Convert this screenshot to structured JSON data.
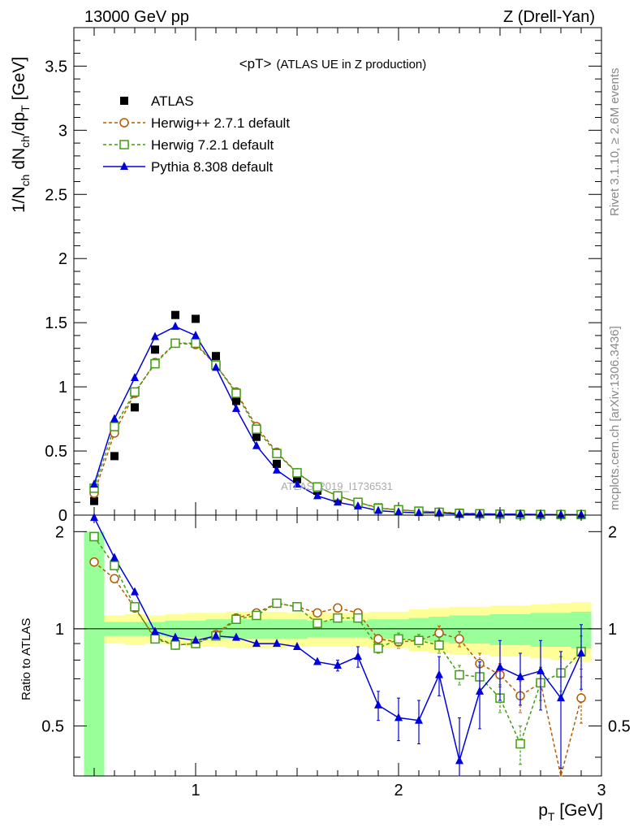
{
  "header": {
    "left": "13000 GeV pp",
    "right": "Z (Drell-Yan)"
  },
  "side_labels": {
    "upper": "Rivet 3.1.10, ≥ 2.6M events",
    "lower": "mcplots.cern.ch [arXiv:1306.3436]"
  },
  "watermark": "ATLAS_2019_I1736531",
  "chart_data": [
    {
      "type": "line",
      "title": "<pT>",
      "subtitle": "(ATLAS UE in Z production)",
      "ylabel_parts": [
        "1/N",
        "ch",
        " dN",
        "ch",
        "/dp",
        "T",
        " [GeV]"
      ],
      "xlim": [
        0.4,
        3.0
      ],
      "ylim": [
        0,
        3.8
      ],
      "yticks": [
        0,
        0.5,
        1,
        1.5,
        2,
        2.5,
        3,
        3.5
      ],
      "ytick_labels": [
        "0",
        "0.5",
        "1",
        "1.5",
        "2",
        "2.5",
        "3",
        "3.5"
      ],
      "legend_position": "top-left",
      "x": [
        0.5,
        0.6,
        0.7,
        0.8,
        0.9,
        1.0,
        1.1,
        1.2,
        1.3,
        1.4,
        1.5,
        1.6,
        1.7,
        1.8,
        1.9,
        2.0,
        2.1,
        2.2,
        2.3,
        2.4,
        2.5,
        2.6,
        2.7,
        2.8,
        2.9
      ],
      "series": [
        {
          "name": "ATLAS",
          "color": "#000000",
          "marker": "square-filled",
          "values": [
            0.11,
            0.46,
            0.84,
            1.29,
            1.56,
            1.53,
            1.24,
            0.89,
            0.61,
            0.4,
            0.28,
            0.19,
            0.13,
            0.09,
            0.06,
            0.045,
            0.034,
            0.025,
            0.018,
            0.014,
            0.011,
            0.009,
            0.007,
            0.005,
            0.004
          ]
        },
        {
          "name": "Herwig++ 2.7.1 default",
          "color": "#b35a00",
          "marker": "circle-open",
          "dash": "4,3",
          "values": [
            0.17,
            0.64,
            0.95,
            1.19,
            1.34,
            1.33,
            1.17,
            0.96,
            0.69,
            0.49,
            0.33,
            0.22,
            0.15,
            0.1,
            0.057,
            0.041,
            0.031,
            0.024,
            0.016,
            0.011,
            0.008,
            0.006,
            0.005,
            0.004,
            0.003
          ]
        },
        {
          "name": "Herwig 7.2.1 default",
          "color": "#3e9e0f",
          "marker": "square-open",
          "dash": "4,3",
          "values": [
            0.21,
            0.69,
            0.96,
            1.18,
            1.34,
            1.34,
            1.17,
            0.95,
            0.67,
            0.48,
            0.33,
            0.22,
            0.15,
            0.1,
            0.053,
            0.042,
            0.031,
            0.022,
            0.013,
            0.01,
            0.007,
            0.004,
            0.005,
            0.004,
            0.004
          ]
        },
        {
          "name": "Pythia 8.308 default",
          "color": "#0000dd",
          "marker": "triangle-filled",
          "values": [
            0.24,
            0.75,
            1.07,
            1.39,
            1.47,
            1.4,
            1.15,
            0.83,
            0.54,
            0.35,
            0.24,
            0.15,
            0.1,
            0.07,
            0.035,
            0.024,
            0.018,
            0.018,
            0.007,
            0.009,
            0.008,
            0.007,
            0.005,
            0.003,
            0.003
          ]
        }
      ]
    },
    {
      "type": "line",
      "ylabel": "Ratio to ATLAS",
      "xlabel_parts": [
        "p",
        "T",
        " [GeV]"
      ],
      "xlim": [
        0.4,
        3.0
      ],
      "ylim": [
        0.35,
        2.25
      ],
      "xticks": [
        1,
        2,
        3
      ],
      "xtick_labels": [
        "1",
        "2",
        "3"
      ],
      "yticks": [
        0.5,
        1,
        2
      ],
      "ytick_labels": [
        "0.5",
        "1",
        "2"
      ],
      "reference_line": 1,
      "band_x_edges": [
        0.45,
        0.55,
        0.65,
        0.75,
        0.85,
        0.95,
        1.05,
        1.15,
        1.25,
        1.35,
        1.45,
        1.55,
        1.65,
        1.75,
        1.85,
        1.95,
        2.05,
        2.15,
        2.25,
        2.35,
        2.45,
        2.55,
        2.65,
        2.75,
        2.85,
        2.95
      ],
      "band_total_halfwidth": [
        1.0,
        0.1,
        0.11,
        0.1,
        0.11,
        0.12,
        0.12,
        0.13,
        0.13,
        0.13,
        0.12,
        0.12,
        0.12,
        0.12,
        0.13,
        0.13,
        0.15,
        0.16,
        0.17,
        0.17,
        0.18,
        0.18,
        0.19,
        0.2,
        0.21
      ],
      "band_stat_halfwidth": [
        1.0,
        0.05,
        0.05,
        0.05,
        0.06,
        0.06,
        0.07,
        0.07,
        0.07,
        0.07,
        0.07,
        0.06,
        0.06,
        0.06,
        0.07,
        0.07,
        0.08,
        0.09,
        0.1,
        0.1,
        0.11,
        0.11,
        0.12,
        0.12,
        0.13
      ],
      "band_colors": {
        "total": "#ffff99",
        "stat": "#99ff99"
      },
      "x": [
        0.5,
        0.6,
        0.7,
        0.8,
        0.9,
        1.0,
        1.1,
        1.2,
        1.3,
        1.4,
        1.5,
        1.6,
        1.7,
        1.8,
        1.9,
        2.0,
        2.1,
        2.2,
        2.3,
        2.4,
        2.5,
        2.6,
        2.7,
        2.8,
        2.9
      ],
      "series": [
        {
          "name": "Herwig++ 2.7.1 default",
          "color": "#b35a00",
          "marker": "circle-open",
          "dash": "4,3",
          "values": [
            1.61,
            1.43,
            1.16,
            0.94,
            0.89,
            0.9,
            0.96,
            1.08,
            1.12,
            1.2,
            1.17,
            1.12,
            1.16,
            1.12,
            0.93,
            0.91,
            0.92,
            0.97,
            0.93,
            0.78,
            0.72,
            0.62,
            0.68,
            0.25,
            0.61
          ],
          "err": [
            0,
            0,
            0,
            0,
            0,
            0,
            0,
            0,
            0,
            0,
            0,
            0,
            0.02,
            0.03,
            0.03,
            0.04,
            0.04,
            0.05,
            0.05,
            0.06,
            0.06,
            0.07,
            0.08,
            0.12,
            0.1
          ]
        },
        {
          "name": "Herwig 7.2.1 default",
          "color": "#3e9e0f",
          "marker": "square-open",
          "dash": "4,3",
          "values": [
            1.93,
            1.57,
            1.17,
            0.93,
            0.89,
            0.9,
            0.95,
            1.07,
            1.1,
            1.2,
            1.17,
            1.04,
            1.08,
            1.08,
            0.87,
            0.93,
            0.92,
            0.89,
            0.72,
            0.71,
            0.61,
            0.44,
            0.68,
            0.73,
            0.85
          ],
          "err": [
            0,
            0,
            0,
            0,
            0,
            0,
            0,
            0,
            0,
            0,
            0,
            0,
            0.02,
            0.03,
            0.03,
            0.04,
            0.04,
            0.05,
            0.05,
            0.06,
            0.06,
            0.06,
            0.08,
            0.09,
            0.1
          ]
        },
        {
          "name": "Pythia 8.308 default",
          "color": "#0000dd",
          "marker": "triangle-filled",
          "values": [
            2.21,
            1.66,
            1.3,
            0.98,
            0.94,
            0.92,
            0.95,
            0.94,
            0.9,
            0.9,
            0.88,
            0.79,
            0.77,
            0.82,
            0.58,
            0.53,
            0.52,
            0.72,
            0.39,
            0.64,
            0.76,
            0.71,
            0.74,
            0.61,
            0.84
          ],
          "err": [
            0,
            0,
            0,
            0,
            0,
            0,
            0,
            0,
            0,
            0,
            0,
            0,
            0.03,
            0.06,
            0.06,
            0.08,
            0.08,
            0.1,
            0.14,
            0.15,
            0.16,
            0.13,
            0.18,
            0.24,
            0.19
          ]
        }
      ]
    }
  ]
}
